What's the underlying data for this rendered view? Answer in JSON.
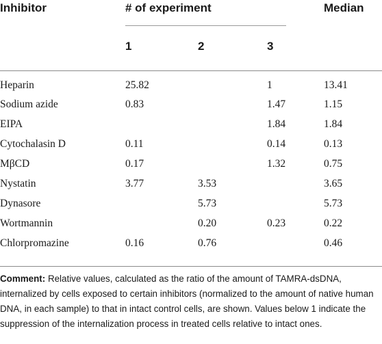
{
  "table": {
    "header": {
      "inhibitor": "Inhibitor",
      "group": "# of experiment",
      "median": "Median",
      "experiments": [
        "1",
        "2",
        "3"
      ]
    },
    "rows": [
      {
        "name": "Heparin",
        "e1": "25.82",
        "e2": "",
        "e3": "1",
        "median": "13.41"
      },
      {
        "name": "Sodium azide",
        "e1": "0.83",
        "e2": "",
        "e3": "1.47",
        "median": "1.15"
      },
      {
        "name": "EIPA",
        "e1": "",
        "e2": "",
        "e3": "1.84",
        "median": "1.84"
      },
      {
        "name": "Cytochalasin D",
        "e1": "0.11",
        "e2": "",
        "e3": "0.14",
        "median": "0.13"
      },
      {
        "name": "MβCD",
        "e1": "0.17",
        "e2": "",
        "e3": "1.32",
        "median": "0.75"
      },
      {
        "name": "Nystatin",
        "e1": "3.77",
        "e2": "3.53",
        "e3": "",
        "median": "3.65"
      },
      {
        "name": "Dynasore",
        "e1": "",
        "e2": "5.73",
        "e3": "",
        "median": "5.73"
      },
      {
        "name": "Wortmannin",
        "e1": "",
        "e2": "0.20",
        "e3": "0.23",
        "median": "0.22"
      },
      {
        "name": "Chlorpromazine",
        "e1": "0.16",
        "e2": "0.76",
        "e3": "",
        "median": "0.46"
      }
    ]
  },
  "comment": {
    "label": "Comment:",
    "text": " Relative values, calculated as the ratio of the amount of TAMRA-dsDNA, internalized by cells exposed to certain inhibitors (normalized to the amount of native human DNA, in each sample) to that in intact control cells, are shown. Values below 1 indicate the suppression of the internalization process in treated cells relative to intact ones."
  }
}
